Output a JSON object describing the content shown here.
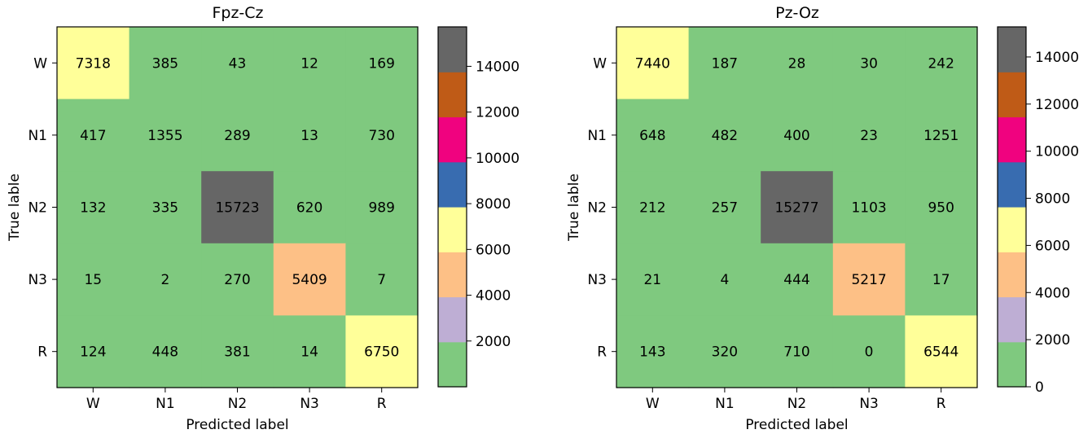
{
  "chart_data": [
    {
      "type": "heatmap",
      "title": "Fpz-Cz",
      "xlabel": "Predicted label",
      "ylabel": "True lable",
      "x_categories": [
        "W",
        "N1",
        "N2",
        "N3",
        "R"
      ],
      "y_categories": [
        "W",
        "N1",
        "N2",
        "N3",
        "R"
      ],
      "values": [
        [
          7318,
          385,
          43,
          12,
          169
        ],
        [
          417,
          1355,
          289,
          13,
          730
        ],
        [
          132,
          335,
          15723,
          620,
          989
        ],
        [
          15,
          2,
          270,
          5409,
          7
        ],
        [
          124,
          448,
          381,
          14,
          6750
        ]
      ],
      "colorbar": {
        "range": [
          0,
          15723
        ],
        "ticks": [
          2000,
          4000,
          6000,
          8000,
          10000,
          12000,
          14000
        ],
        "tick_labels": [
          "2000",
          "4000",
          "6000",
          "8000",
          "10000",
          "12000",
          "14000"
        ]
      }
    },
    {
      "type": "heatmap",
      "title": "Pz-Oz",
      "xlabel": "Predicted label",
      "ylabel": "True lable",
      "x_categories": [
        "W",
        "N1",
        "N2",
        "N3",
        "R"
      ],
      "y_categories": [
        "W",
        "N1",
        "N2",
        "N3",
        "R"
      ],
      "values": [
        [
          7440,
          187,
          28,
          30,
          242
        ],
        [
          648,
          482,
          400,
          23,
          1251
        ],
        [
          212,
          257,
          15277,
          1103,
          950
        ],
        [
          21,
          4,
          444,
          5217,
          17
        ],
        [
          143,
          320,
          710,
          0,
          6544
        ]
      ],
      "colorbar": {
        "range": [
          0,
          15277
        ],
        "ticks": [
          0,
          2000,
          4000,
          6000,
          8000,
          10000,
          12000,
          14000
        ],
        "tick_labels": [
          "0",
          "2000",
          "4000",
          "6000",
          "8000",
          "10000",
          "12000",
          "14000"
        ]
      }
    }
  ],
  "colormap": {
    "name": "Accent",
    "colors": [
      "#7fc97f",
      "#beaed4",
      "#fdc086",
      "#ffff99",
      "#386cb0",
      "#f0027f",
      "#bf5b17",
      "#666666"
    ]
  }
}
